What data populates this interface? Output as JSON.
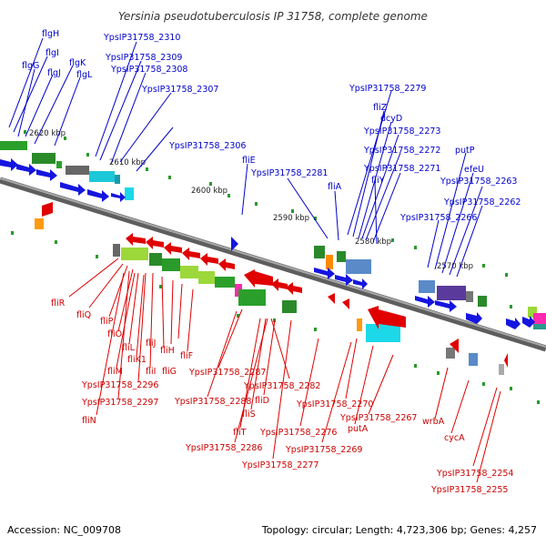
{
  "title": "Yersinia pseudotuberculosis IP 31758, complete genome",
  "colors": {
    "forward_label": "#0000cc",
    "reverse_label": "#cc0000",
    "forward_arrow": "#1515e0",
    "reverse_arrow": "#e00000",
    "backbone": "#7a7a7a",
    "feature_green": "#2aa02a",
    "feature_cyan": "#1cc8d8",
    "feature_lime": "#9cd83a",
    "feature_purple": "#5a3a9a",
    "feature_orange": "#ff9a10",
    "feature_magenta": "#ff2ab0",
    "feature_steel": "#5a8ac8",
    "feature_gray": "#777777"
  },
  "ticks": [
    "2620 kbp",
    "2610 kbp",
    "2600 kbp",
    "2590 kbp",
    "2580 kbp",
    "2570 kbp"
  ],
  "forward_labels": [
    "flgH",
    "flgI",
    "flgG",
    "flgJ",
    "flgK",
    "flgL",
    "YpsIP31758_2310",
    "YpsIP31758_2309",
    "YpsIP31758_2308",
    "YpsIP31758_2307",
    "YpsIP31758_2306",
    "fliE",
    "YpsIP31758_2281",
    "fliA",
    "YpsIP31758_2279",
    "fliZ",
    "dcyD",
    "YpsIP31758_2273",
    "YpsIP31758_2272",
    "YpsIP31758_2271",
    "fliY",
    "YpsIP31758_2266",
    "putP",
    "efeU",
    "YpsIP31758_2263",
    "YpsIP31758_2262"
  ],
  "reverse_labels": [
    "fliR",
    "fliQ",
    "fliP",
    "fliO",
    "fliL",
    "fliK1",
    "fliM",
    "fliJ",
    "fliI",
    "fliH",
    "fliG",
    "fliF",
    "YpsIP31758_2296",
    "YpsIP31758_2297",
    "fliN",
    "YpsIP31758_2287",
    "YpsIP31758_2288",
    "YpsIP31758_2282",
    "fliD",
    "fliS",
    "fliT",
    "YpsIP31758_2286",
    "YpsIP31758_2277",
    "YpsIP31758_2276",
    "YpsIP31758_2270",
    "YpsIP31758_2269",
    "YpsIP31758_2267",
    "putA",
    "wrbA",
    "cycA",
    "YpsIP31758_2254",
    "YpsIP31758_2255"
  ],
  "footer": {
    "accession": "Accession: NC_009708",
    "summary": "Topology: circular; Length: 4,723,306 bp; Genes: 4,257"
  }
}
